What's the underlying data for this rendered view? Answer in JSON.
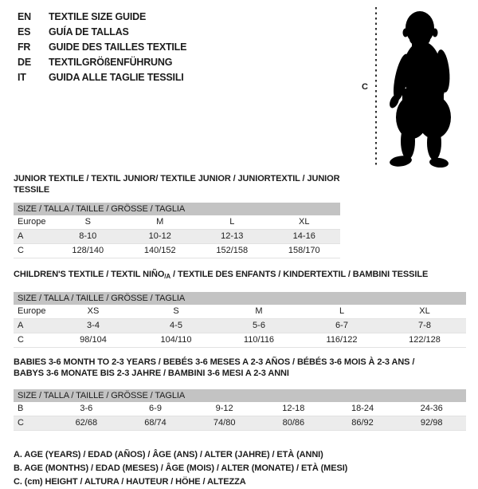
{
  "colors": {
    "text": "#1c1c1c",
    "size_header_bar": "#c3c3c3",
    "row_alt": "#ececec",
    "silhouette": "#000000"
  },
  "header": {
    "languages": [
      {
        "code": "EN",
        "text": "TEXTILE SIZE GUIDE"
      },
      {
        "code": "ES",
        "text": "GUÍA DE TALLAS"
      },
      {
        "code": "FR",
        "text": "GUIDE DES TAILLES TEXTILE"
      },
      {
        "code": "DE",
        "text": "TEXTILGRÖßENFÜHRUNG"
      },
      {
        "code": "IT",
        "text": "GUIDA ALLE TAGLIE TESSILI"
      }
    ]
  },
  "figure": {
    "icon": "baby-silhouette",
    "measure_label": "C"
  },
  "tables": [
    {
      "id": "junior",
      "title_line1": "JUNIOR TEXTILE / TEXTIL JUNIOR/ TEXTILE JUNIOR / JUNIORTEXTIL / JUNIOR TESSILE",
      "size_header": "SIZE / TALLA / TAILLE / GRÖSSE / TAGLIA",
      "rows": [
        [
          "Europe",
          "S",
          "M",
          "L",
          "XL"
        ],
        [
          "A",
          "8-10",
          "10-12",
          "12-13",
          "14-16"
        ],
        [
          "C",
          "128/140",
          "140/152",
          "152/158",
          "158/170"
        ]
      ]
    },
    {
      "id": "children",
      "title_pre": "CHILDREN'S TEXTILE / TEXTIL NIÑO",
      "title_sub": "/A",
      "title_post": " / TEXTILE DES ENFANTS / KINDERTEXTIL / BAMBINI TESSILE",
      "size_header": "SIZE / TALLA / TAILLE / GRÖSSE / TAGLIA",
      "rows": [
        [
          "Europe",
          "XS",
          "S",
          "M",
          "L",
          "XL"
        ],
        [
          "A",
          "3-4",
          "4-5",
          "5-6",
          "6-7",
          "7-8"
        ],
        [
          "C",
          "98/104",
          "104/110",
          "110/116",
          "116/122",
          "122/128"
        ]
      ]
    },
    {
      "id": "babies",
      "title_line1": "BABIES 3-6 MONTH TO 2-3 YEARS / BEBÉS 3-6 MESES A 2-3 AÑOS / BÉBÉS 3-6 MOIS À 2-3 ANS /",
      "title_line2": "BABYS 3-6 MONATE BIS 2-3 JAHRE / BAMBINI 3-6 MESI A 2-3 ANNI",
      "size_header": "SIZE / TALLA / TAILLE / GRÖSSE / TAGLIA",
      "rows": [
        [
          "B",
          "3-6",
          "6-9",
          "9-12",
          "12-18",
          "18-24",
          "24-36"
        ],
        [
          "C",
          "62/68",
          "68/74",
          "74/80",
          "80/86",
          "86/92",
          "92/98"
        ]
      ]
    }
  ],
  "footnotes": [
    "A. AGE (YEARS) / EDAD (AÑOS) / ÂGE (ANS) / ALTER (JAHRE) / ETÀ (ANNI)",
    "B. AGE (MONTHS) / EDAD (MESES) / ÂGE (MOIS) / ALTER (MONATE) / ETÀ (MESI)",
    "C. (cm) HEIGHT / ALTURA / HAUTEUR / HÖHE / ALTEZZA"
  ]
}
